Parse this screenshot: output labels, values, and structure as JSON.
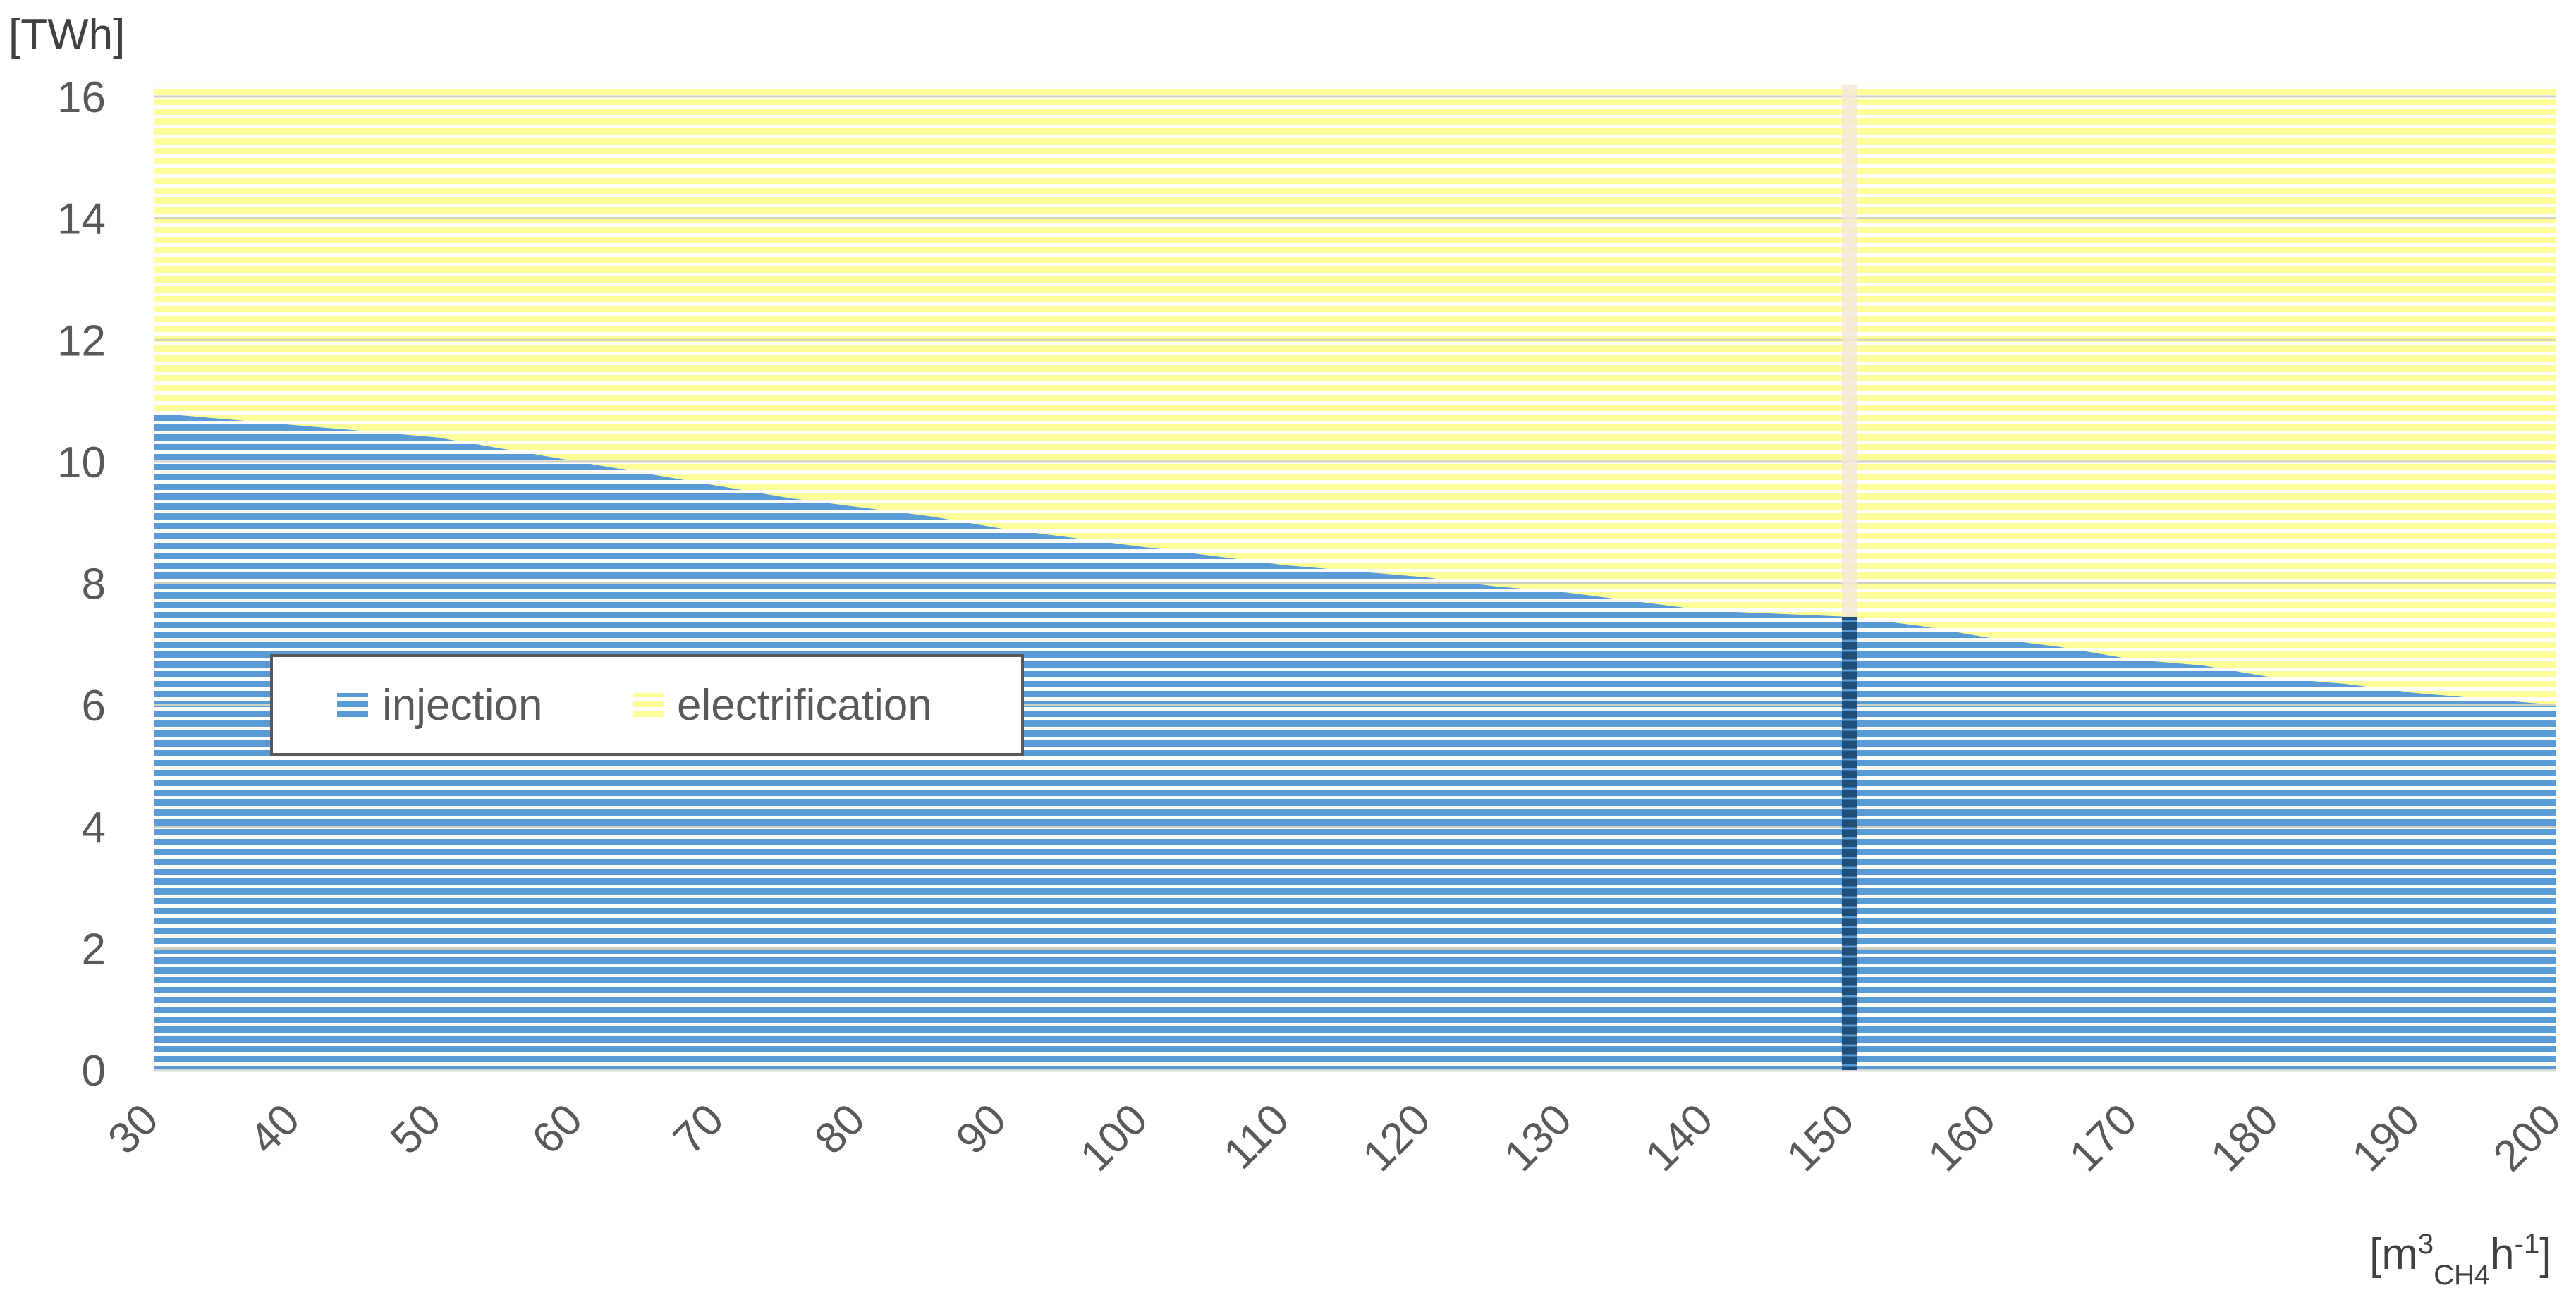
{
  "chart_data": {
    "type": "area",
    "x_unit": "[m³CH4h⁻¹]",
    "x_unit_parts": {
      "base": "[m",
      "sup3": "3",
      "sub": "CH4",
      "h": "h",
      "sup_exp": "-1",
      "close": "]"
    },
    "y_unit": "[TWh]",
    "xlim": [
      30,
      200
    ],
    "ylim": [
      0,
      16
    ],
    "x_ticks": [
      "30",
      "40",
      "50",
      "60",
      "70",
      "80",
      "90",
      "100",
      "110",
      "120",
      "130",
      "140",
      "150",
      "160",
      "170",
      "180",
      "190",
      "200"
    ],
    "y_ticks": [
      "0",
      "2",
      "4",
      "6",
      "8",
      "10",
      "12",
      "14",
      "16"
    ],
    "grid": "horizontal",
    "legend_position": "left-middle",
    "highlight_x": 150,
    "series": [
      {
        "name": "injection",
        "color": "#5b9bd5",
        "x": [
          30,
          35,
          40,
          45,
          50,
          55,
          60,
          65,
          70,
          75,
          80,
          85,
          90,
          95,
          100,
          105,
          110,
          115,
          120,
          125,
          130,
          135,
          140,
          145,
          150,
          155,
          160,
          165,
          170,
          175,
          180,
          185,
          190,
          195,
          200
        ],
        "values": [
          10.8,
          10.7,
          10.6,
          10.5,
          10.4,
          10.2,
          10.0,
          9.8,
          9.6,
          9.4,
          9.25,
          9.1,
          8.9,
          8.75,
          8.6,
          8.45,
          8.3,
          8.2,
          8.1,
          7.95,
          7.85,
          7.7,
          7.55,
          7.5,
          7.45,
          7.3,
          7.1,
          6.95,
          6.75,
          6.65,
          6.45,
          6.35,
          6.2,
          6.1,
          6.0
        ]
      },
      {
        "name": "electrification",
        "color": "#ffff99",
        "x": [
          30,
          35,
          40,
          45,
          50,
          55,
          60,
          65,
          70,
          75,
          80,
          85,
          90,
          95,
          100,
          105,
          110,
          115,
          120,
          125,
          130,
          135,
          140,
          145,
          150,
          155,
          160,
          165,
          170,
          175,
          180,
          185,
          190,
          195,
          200
        ],
        "values": [
          5.4,
          5.5,
          5.6,
          5.7,
          5.8,
          6.0,
          6.2,
          6.4,
          6.6,
          6.8,
          6.95,
          7.1,
          7.3,
          7.45,
          7.6,
          7.75,
          7.9,
          8.0,
          8.1,
          8.25,
          8.35,
          8.5,
          8.65,
          8.7,
          8.75,
          8.9,
          9.1,
          9.25,
          9.45,
          9.55,
          9.75,
          9.85,
          10.0,
          10.1,
          10.2
        ]
      }
    ]
  }
}
